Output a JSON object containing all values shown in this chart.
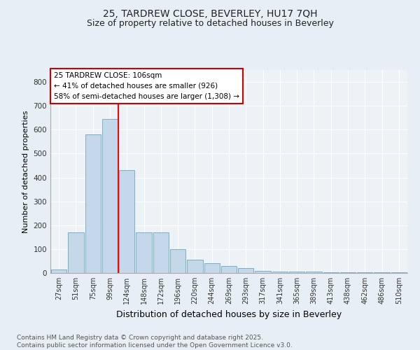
{
  "title_line1": "25, TARDREW CLOSE, BEVERLEY, HU17 7QH",
  "title_line2": "Size of property relative to detached houses in Beverley",
  "xlabel": "Distribution of detached houses by size in Beverley",
  "ylabel": "Number of detached properties",
  "bar_labels": [
    "27sqm",
    "51sqm",
    "75sqm",
    "99sqm",
    "124sqm",
    "148sqm",
    "172sqm",
    "196sqm",
    "220sqm",
    "244sqm",
    "269sqm",
    "293sqm",
    "317sqm",
    "341sqm",
    "365sqm",
    "389sqm",
    "413sqm",
    "438sqm",
    "462sqm",
    "486sqm",
    "510sqm"
  ],
  "bar_values": [
    15,
    170,
    580,
    645,
    430,
    170,
    170,
    100,
    55,
    40,
    30,
    20,
    10,
    5,
    5,
    5,
    4,
    4,
    3,
    2,
    4
  ],
  "bar_color": "#c5d8ea",
  "bar_edge_color": "#7aafc8",
  "annotation_line1": "25 TARDREW CLOSE: 106sqm",
  "annotation_line2": "← 41% of detached houses are smaller (926)",
  "annotation_line3": "58% of semi-detached houses are larger (1,308) →",
  "annotation_box_facecolor": "#ffffff",
  "annotation_box_edgecolor": "#cc0000",
  "red_line_index": 3.5,
  "ylim": [
    0,
    850
  ],
  "yticks": [
    0,
    100,
    200,
    300,
    400,
    500,
    600,
    700,
    800
  ],
  "bg_color": "#e8eef5",
  "plot_bg_color": "#edf2f7",
  "grid_color": "#ffffff",
  "footer_line1": "Contains HM Land Registry data © Crown copyright and database right 2025.",
  "footer_line2": "Contains public sector information licensed under the Open Government Licence v3.0.",
  "title1_fontsize": 10,
  "title2_fontsize": 9,
  "ylabel_fontsize": 8,
  "xlabel_fontsize": 9,
  "tick_fontsize": 7,
  "footer_fontsize": 6.5
}
